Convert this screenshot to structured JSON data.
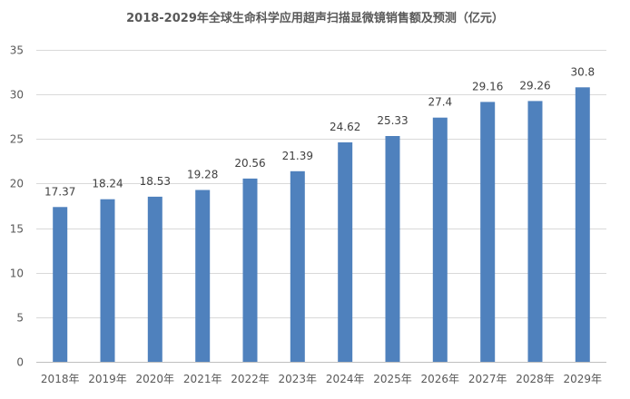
{
  "chart_data": {
    "type": "bar",
    "title": "2018-2029年全球生命科学应用超声扫描显微镜销售额及预测（亿元）",
    "categories": [
      "2018年",
      "2019年",
      "2020年",
      "2021年",
      "2022年",
      "2023年",
      "2024年",
      "2025年",
      "2026年",
      "2027年",
      "2028年",
      "2029年"
    ],
    "values": [
      17.37,
      18.24,
      18.53,
      19.28,
      20.56,
      21.39,
      24.62,
      25.33,
      27.4,
      29.16,
      29.26,
      30.8
    ],
    "value_labels": [
      "17.37",
      "18.24",
      "18.53",
      "19.28",
      "20.56",
      "21.39",
      "24.62",
      "25.33",
      "27.4",
      "29.16",
      "29.26",
      "30.8"
    ],
    "ylim": [
      0,
      35
    ],
    "yticks": [
      "0",
      "5",
      "10",
      "15",
      "20",
      "25",
      "30",
      "35"
    ],
    "grid": true,
    "bar_color": "#4f81bd"
  }
}
